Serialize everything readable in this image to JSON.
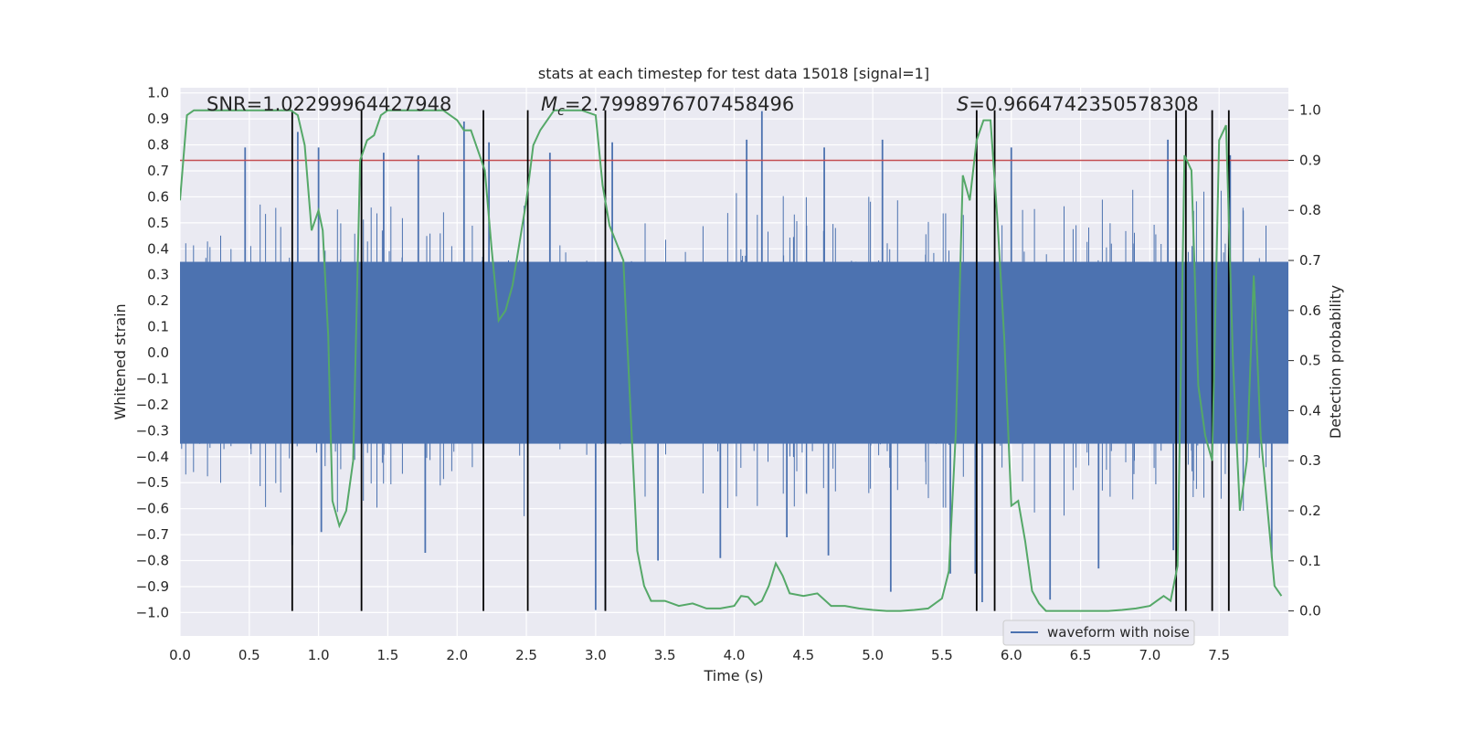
{
  "chart_data": {
    "type": "line",
    "title": "stats at each timestep for test data 15018 [signal=1]",
    "xlabel": "Time (s)",
    "ylabel_left": "Whitened strain",
    "ylabel_right": "Detection probability",
    "xlim": [
      0.0,
      8.0
    ],
    "ylim_left": [
      -1.09,
      1.02
    ],
    "ylim_right": [
      -0.05,
      1.045
    ],
    "x_ticks": [
      "0.0",
      "0.5",
      "1.0",
      "1.5",
      "2.0",
      "2.5",
      "3.0",
      "3.5",
      "4.0",
      "4.5",
      "5.0",
      "5.5",
      "6.0",
      "6.5",
      "7.0",
      "7.5"
    ],
    "y_ticks_left": [
      "1.0",
      "0.9",
      "0.8",
      "0.7",
      "0.6",
      "0.5",
      "0.4",
      "0.3",
      "0.2",
      "0.1",
      "0.0",
      "−0.1",
      "−0.2",
      "−0.3",
      "−0.4",
      "−0.5",
      "−0.6",
      "−0.7",
      "−0.8",
      "−0.9",
      "−1.0"
    ],
    "y_ticks_right": [
      "0.0",
      "0.1",
      "0.2",
      "0.3",
      "0.4",
      "0.5",
      "0.6",
      "0.7",
      "0.8",
      "0.9",
      "1.0"
    ],
    "annotations": {
      "snr": "SNR=1.02299964427948",
      "mc_symbol": "M",
      "mc_sub": "c",
      "mc_value": "=2.7998976707458496",
      "s_symbol": "S",
      "s_value": "=0.9664742350578308"
    },
    "legend": {
      "label": "waveform with noise",
      "location": "lower-right"
    },
    "threshold": 0.9,
    "waveform": {
      "name": "waveform with noise",
      "x_range": [
        0.0,
        8.0
      ],
      "core_amplitude": 0.35,
      "max_positive": 0.93,
      "max_negative": -0.99,
      "spikes": [
        {
          "x": 0.47,
          "y": 0.79
        },
        {
          "x": 0.81,
          "y": -0.74
        },
        {
          "x": 0.85,
          "y": 0.85
        },
        {
          "x": 1.0,
          "y": 0.79
        },
        {
          "x": 1.02,
          "y": -0.69
        },
        {
          "x": 1.47,
          "y": 0.77
        },
        {
          "x": 1.72,
          "y": 0.76
        },
        {
          "x": 1.77,
          "y": -0.77
        },
        {
          "x": 2.05,
          "y": 0.89
        },
        {
          "x": 2.23,
          "y": 0.81
        },
        {
          "x": 2.67,
          "y": 0.77
        },
        {
          "x": 3.0,
          "y": -0.99
        },
        {
          "x": 3.07,
          "y": -0.99
        },
        {
          "x": 3.12,
          "y": 0.81
        },
        {
          "x": 3.45,
          "y": -0.8
        },
        {
          "x": 3.9,
          "y": -0.79
        },
        {
          "x": 4.09,
          "y": 0.82
        },
        {
          "x": 4.2,
          "y": 0.93
        },
        {
          "x": 4.38,
          "y": -0.71
        },
        {
          "x": 4.65,
          "y": 0.79
        },
        {
          "x": 4.68,
          "y": -0.78
        },
        {
          "x": 5.07,
          "y": 0.82
        },
        {
          "x": 5.13,
          "y": -0.92
        },
        {
          "x": 5.56,
          "y": -0.85
        },
        {
          "x": 5.74,
          "y": -0.85
        },
        {
          "x": 5.79,
          "y": -0.96
        },
        {
          "x": 6.0,
          "y": 0.79
        },
        {
          "x": 6.28,
          "y": -0.95
        },
        {
          "x": 6.63,
          "y": -0.83
        },
        {
          "x": 7.13,
          "y": 0.82
        },
        {
          "x": 7.17,
          "y": -0.76
        },
        {
          "x": 7.58,
          "y": 0.76
        },
        {
          "x": 7.88,
          "y": -0.79
        }
      ]
    },
    "detection_probability": {
      "name": "Detection probability",
      "x": [
        0.0,
        0.05,
        0.1,
        0.2,
        0.3,
        0.4,
        0.5,
        0.6,
        0.7,
        0.8,
        0.85,
        0.9,
        0.95,
        1.0,
        1.03,
        1.07,
        1.1,
        1.15,
        1.2,
        1.25,
        1.3,
        1.35,
        1.4,
        1.45,
        1.5,
        1.6,
        1.7,
        1.8,
        1.9,
        2.0,
        2.05,
        2.1,
        2.2,
        2.25,
        2.3,
        2.35,
        2.4,
        2.5,
        2.55,
        2.6,
        2.7,
        2.8,
        2.9,
        3.0,
        3.05,
        3.1,
        3.2,
        3.3,
        3.35,
        3.4,
        3.5,
        3.6,
        3.7,
        3.8,
        3.9,
        4.0,
        4.05,
        4.1,
        4.15,
        4.2,
        4.25,
        4.3,
        4.35,
        4.4,
        4.5,
        4.6,
        4.7,
        4.8,
        4.9,
        5.0,
        5.1,
        5.2,
        5.3,
        5.4,
        5.5,
        5.55,
        5.6,
        5.65,
        5.7,
        5.75,
        5.8,
        5.85,
        5.9,
        5.95,
        6.0,
        6.05,
        6.1,
        6.15,
        6.2,
        6.25,
        6.3,
        6.4,
        6.5,
        6.6,
        6.7,
        6.8,
        6.9,
        7.0,
        7.05,
        7.1,
        7.15,
        7.2,
        7.25,
        7.3,
        7.35,
        7.4,
        7.45,
        7.5,
        7.55,
        7.6,
        7.65,
        7.7,
        7.75,
        7.8,
        7.85,
        7.9,
        7.95
      ],
      "y": [
        0.82,
        0.99,
        1.0,
        1.0,
        1.0,
        1.0,
        1.0,
        1.0,
        1.0,
        1.0,
        0.99,
        0.93,
        0.76,
        0.8,
        0.76,
        0.55,
        0.22,
        0.17,
        0.2,
        0.3,
        0.9,
        0.94,
        0.95,
        0.99,
        1.0,
        1.0,
        1.0,
        1.0,
        1.0,
        0.98,
        0.96,
        0.96,
        0.88,
        0.72,
        0.58,
        0.6,
        0.65,
        0.82,
        0.93,
        0.96,
        1.0,
        1.0,
        1.0,
        0.99,
        0.85,
        0.77,
        0.7,
        0.12,
        0.05,
        0.02,
        0.02,
        0.01,
        0.015,
        0.005,
        0.005,
        0.01,
        0.03,
        0.028,
        0.012,
        0.02,
        0.05,
        0.095,
        0.07,
        0.035,
        0.03,
        0.035,
        0.01,
        0.01,
        0.005,
        0.002,
        0.0,
        0.0,
        0.002,
        0.005,
        0.025,
        0.08,
        0.36,
        0.87,
        0.82,
        0.94,
        0.98,
        0.98,
        0.78,
        0.54,
        0.21,
        0.22,
        0.14,
        0.04,
        0.015,
        0.0,
        0.0,
        0.0,
        0.0,
        0.0,
        0.0,
        0.002,
        0.005,
        0.01,
        0.02,
        0.03,
        0.02,
        0.09,
        0.91,
        0.88,
        0.45,
        0.35,
        0.3,
        0.94,
        0.97,
        0.5,
        0.2,
        0.3,
        0.67,
        0.35,
        0.2,
        0.05,
        0.03
      ]
    },
    "detection_events_x": [
      0.81,
      1.31,
      2.19,
      2.51,
      3.07,
      5.75,
      5.88,
      7.19,
      7.26,
      7.45,
      7.57
    ]
  }
}
